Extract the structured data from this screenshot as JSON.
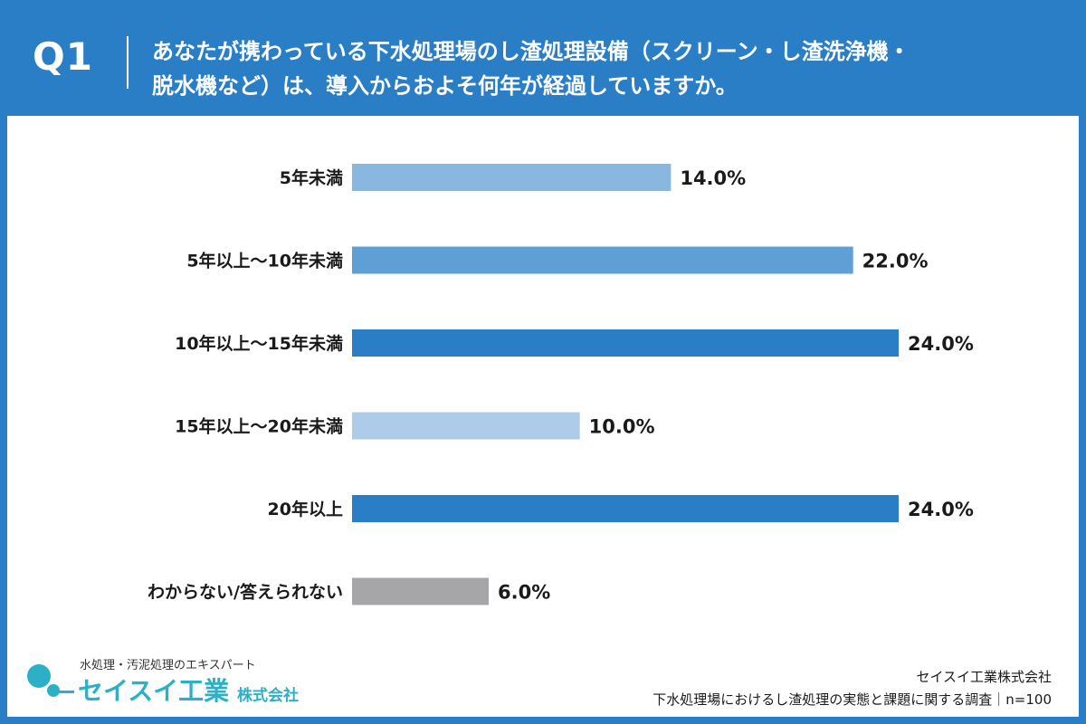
{
  "header": {
    "question_number": "Q1",
    "question_text_line1": "あなたが携わっている下水処理場のし渣処理設備（スクリーン・し渣洗浄機・",
    "question_text_line2": "脱水機など）は、導入からおよそ何年が経過していますか。"
  },
  "chart_data": {
    "type": "bar",
    "orientation": "horizontal",
    "categories": [
      "5年未満",
      "5年以上〜10年未満",
      "10年以上〜15年未満",
      "15年以上〜20年未満",
      "20年以上",
      "わからない/答えられない"
    ],
    "values": [
      14.0,
      22.0,
      24.0,
      10.0,
      24.0,
      6.0
    ],
    "value_labels": [
      "14.0%",
      "22.0%",
      "24.0%",
      "10.0%",
      "24.0%",
      "6.0%"
    ],
    "bar_colors": [
      "#8ab7e0",
      "#5e9fd6",
      "#2a7ec6",
      "#aecbe9",
      "#2a7ec6",
      "#a6a6a8"
    ],
    "xlim": [
      0,
      24
    ],
    "title": "",
    "xlabel": "",
    "ylabel": "",
    "grid": false
  },
  "footer": {
    "logo_tagline": "水処理・汚泥処理のエキスパート",
    "logo_name": "セイスイ工業",
    "logo_suffix": "株式会社",
    "source_company": "セイスイ工業株式会社",
    "source_survey": "下水処理場におけるし渣処理の実態と課題に関する調査｜n=100"
  },
  "colors": {
    "header_bg": "#2a7ec6",
    "logo_accent": "#2bb0c8"
  }
}
